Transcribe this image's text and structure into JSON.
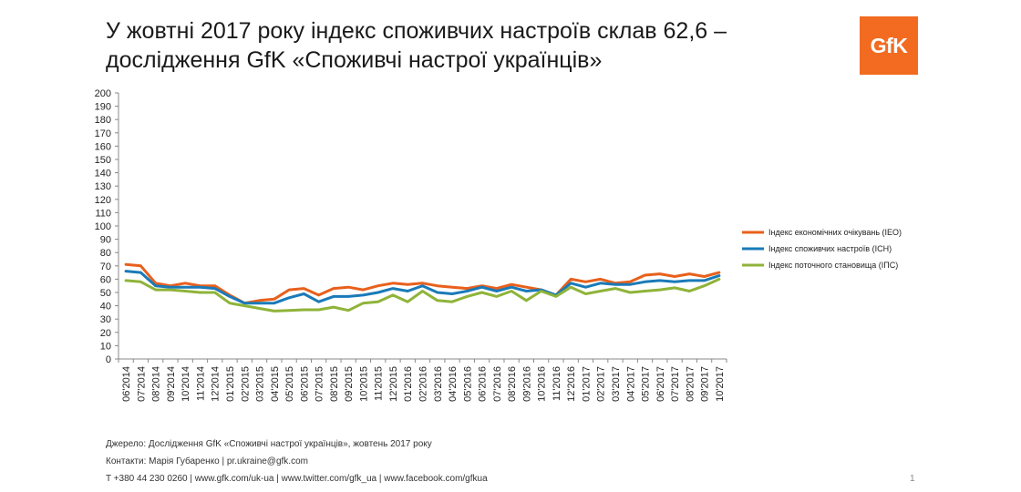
{
  "title": {
    "line1": "У жовтні 2017 року індекс споживчих настроїв склав 62,6 –",
    "line2": "дослідження GfK «Споживчі настрої українців»"
  },
  "logo_text": "GfK",
  "footer": {
    "source": "Джерело: Дослідження GfK «Споживчі настрої українців», жовтень 2017 року",
    "contacts": "Контакти: Марія Губаренко | pr.ukraine@gfk.com",
    "links": "T +380 44 230 0260 | www.gfk.com/uk-ua | www.twitter.com/gfk_ua | www.facebook.com/gfkua"
  },
  "page_number": "1",
  "chart_data": {
    "type": "line",
    "title": "",
    "xlabel": "",
    "ylabel": "",
    "ylim": [
      0,
      200
    ],
    "yticks": [
      0,
      10,
      20,
      30,
      40,
      50,
      60,
      70,
      80,
      90,
      100,
      110,
      120,
      130,
      140,
      150,
      160,
      170,
      180,
      190,
      200
    ],
    "grid": false,
    "legend_position": "right",
    "categories": [
      "06'2014",
      "07'2014",
      "08'2014",
      "09'2014",
      "10'2014",
      "11'2014",
      "12'2014",
      "01'2015",
      "02'2015",
      "03'2015",
      "04'2015",
      "05'2015",
      "06'2015",
      "07'2015",
      "08'2015",
      "09'2015",
      "10'2015",
      "11'2015",
      "12'2015",
      "01'2016",
      "02'2016",
      "03'2016",
      "04'2016",
      "05'2016",
      "06'2016",
      "07'2016",
      "08'2016",
      "09'2016",
      "10'2016",
      "11'2016",
      "12'2016",
      "01'2017",
      "02'2017",
      "03'2017",
      "04'2017",
      "05'2017",
      "06'2017",
      "07'2017",
      "08'2017",
      "09'2017",
      "10'2017"
    ],
    "series": [
      {
        "name": "Індекс економічних очікувань (ІЕО)",
        "color": "#e8601c",
        "values": [
          71,
          70,
          57,
          55,
          57,
          55,
          55,
          48,
          42,
          44,
          45,
          52,
          53,
          48,
          53,
          54,
          52,
          55,
          57,
          56,
          57,
          55,
          54,
          53,
          55,
          53,
          56,
          54,
          52,
          48,
          60,
          58,
          60,
          57,
          58,
          63,
          64,
          62,
          64,
          62,
          65
        ]
      },
      {
        "name": "Індекс споживчих настроїв (ІСН)",
        "color": "#1a7ab8",
        "values": [
          66,
          65,
          55,
          54,
          54,
          54,
          53,
          47,
          42,
          42,
          42,
          46,
          49,
          43,
          47,
          47,
          48,
          50,
          53,
          51,
          55,
          50,
          49,
          51,
          54,
          51,
          54,
          51,
          52,
          48,
          57,
          54,
          57,
          56,
          56,
          58,
          59,
          58,
          59,
          59,
          62.6
        ]
      },
      {
        "name": "Індекс поточного становища (ІПС)",
        "color": "#8fb339",
        "values": [
          59,
          58,
          52,
          52,
          51,
          50,
          50,
          42,
          40,
          38,
          36,
          36.5,
          37,
          37,
          39,
          36.5,
          42,
          43,
          48,
          43,
          51,
          44,
          43,
          47,
          50,
          47,
          51,
          44,
          51,
          47,
          54,
          49,
          51,
          53,
          50,
          51,
          52,
          53.5,
          51,
          55,
          60
        ]
      }
    ]
  }
}
